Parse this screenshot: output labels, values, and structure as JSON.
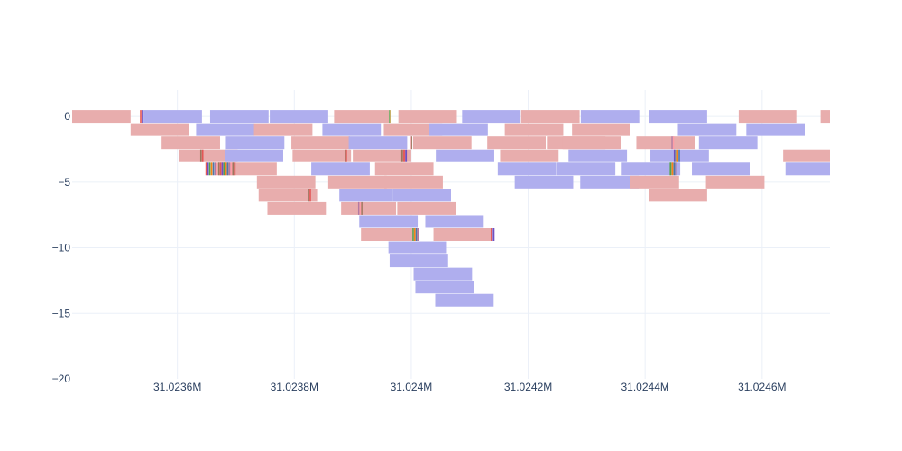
{
  "chart_data": {
    "type": "bar",
    "orientation": "horizontal",
    "grid": true,
    "legend": "none",
    "title": "",
    "xlabel": "",
    "ylabel": "",
    "xlim": [
      31023420,
      31024716
    ],
    "ylim": [
      -20,
      2
    ],
    "x_ticks": [
      {
        "value": 31023600,
        "label": "31.0236M"
      },
      {
        "value": 31023800,
        "label": "31.0238M"
      },
      {
        "value": 31024000,
        "label": "31.024M"
      },
      {
        "value": 31024200,
        "label": "31.0242M"
      },
      {
        "value": 31024400,
        "label": "31.0244M"
      },
      {
        "value": 31024600,
        "label": "31.0246M"
      }
    ],
    "y_ticks": [
      {
        "value": 0,
        "label": "0"
      },
      {
        "value": -5,
        "label": "−5"
      },
      {
        "value": -10,
        "label": "−10"
      },
      {
        "value": -15,
        "label": "−15"
      },
      {
        "value": -20,
        "label": "−20"
      }
    ],
    "colors": {
      "pink": "#e8adad",
      "blue": "#afaeee"
    },
    "segments": [
      {
        "row": 0,
        "start": 31023420,
        "end": 31023520,
        "color": "pink"
      },
      {
        "row": 0,
        "start": 31023542,
        "end": 31023642,
        "color": "blue"
      },
      {
        "row": 0,
        "start": 31023477,
        "end": 31023542,
        "color": "white"
      },
      {
        "row": 0,
        "start": 31023656,
        "end": 31023756,
        "color": "blue"
      },
      {
        "row": 0,
        "start": 31023758,
        "end": 31023858,
        "color": "blue"
      },
      {
        "row": 0,
        "start": 31023868,
        "end": 31023962,
        "color": "pink"
      },
      {
        "row": 0,
        "start": 31023978,
        "end": 31024078,
        "color": "pink"
      },
      {
        "row": 0,
        "start": 31024087,
        "end": 31024187,
        "color": "blue"
      },
      {
        "row": 0,
        "start": 31024188,
        "end": 31024288,
        "color": "pink"
      },
      {
        "row": 0,
        "start": 31024290,
        "end": 31024390,
        "color": "blue"
      },
      {
        "row": 0,
        "start": 31024406,
        "end": 31024506,
        "color": "blue"
      },
      {
        "row": 0,
        "start": 31024560,
        "end": 31024660,
        "color": "pink"
      },
      {
        "row": 0,
        "start": 31024700,
        "end": 31024716,
        "color": "pink"
      },
      {
        "row": -1,
        "start": 31023520,
        "end": 31023620,
        "color": "pink"
      },
      {
        "row": -1,
        "start": 31023632,
        "end": 31023732,
        "color": "blue"
      },
      {
        "row": -1,
        "start": 31023731,
        "end": 31023831,
        "color": "pink"
      },
      {
        "row": -1,
        "start": 31023848,
        "end": 31023948,
        "color": "blue"
      },
      {
        "row": -1,
        "start": 31023953,
        "end": 31024053,
        "color": "pink"
      },
      {
        "row": -1,
        "start": 31024031,
        "end": 31024131,
        "color": "blue"
      },
      {
        "row": -1,
        "start": 31024160,
        "end": 31024260,
        "color": "pink"
      },
      {
        "row": -1,
        "start": 31024275,
        "end": 31024375,
        "color": "pink"
      },
      {
        "row": -1,
        "start": 31024456,
        "end": 31024556,
        "color": "blue"
      },
      {
        "row": -1,
        "start": 31024573,
        "end": 31024673,
        "color": "blue"
      },
      {
        "row": -2,
        "start": 31023573,
        "end": 31023673,
        "color": "pink"
      },
      {
        "row": -2,
        "start": 31023683,
        "end": 31023783,
        "color": "blue"
      },
      {
        "row": -2,
        "start": 31023795,
        "end": 31023895,
        "color": "pink"
      },
      {
        "row": -2,
        "start": 31023893,
        "end": 31023993,
        "color": "blue"
      },
      {
        "row": -2,
        "start": 31024003,
        "end": 31024103,
        "color": "pink"
      },
      {
        "row": -2,
        "start": 31024130,
        "end": 31024230,
        "color": "pink"
      },
      {
        "row": -2,
        "start": 31024232,
        "end": 31024332,
        "color": "pink"
      },
      {
        "row": -2,
        "start": 31024259,
        "end": 31024359,
        "color": "pink"
      },
      {
        "row": -2,
        "start": 31024385,
        "end": 31024485,
        "color": "pink"
      },
      {
        "row": -2,
        "start": 31024492,
        "end": 31024592,
        "color": "blue"
      },
      {
        "row": -3,
        "start": 31023603,
        "end": 31023703,
        "color": "pink"
      },
      {
        "row": -3,
        "start": 31023681,
        "end": 31023781,
        "color": "blue"
      },
      {
        "row": -3,
        "start": 31023797,
        "end": 31023897,
        "color": "pink"
      },
      {
        "row": -3,
        "start": 31023900,
        "end": 31024000,
        "color": "pink"
      },
      {
        "row": -3,
        "start": 31024042,
        "end": 31024142,
        "color": "blue"
      },
      {
        "row": -3,
        "start": 31024152,
        "end": 31024252,
        "color": "pink"
      },
      {
        "row": -3,
        "start": 31024269,
        "end": 31024369,
        "color": "blue"
      },
      {
        "row": -3,
        "start": 31024409,
        "end": 31024509,
        "color": "blue"
      },
      {
        "row": -3,
        "start": 31024636,
        "end": 31024716,
        "color": "pink"
      },
      {
        "row": -4,
        "start": 31023670,
        "end": 31023770,
        "color": "pink"
      },
      {
        "row": -4,
        "start": 31023829,
        "end": 31023929,
        "color": "blue"
      },
      {
        "row": -4,
        "start": 31023938,
        "end": 31024038,
        "color": "pink"
      },
      {
        "row": -4,
        "start": 31024148,
        "end": 31024248,
        "color": "blue"
      },
      {
        "row": -4,
        "start": 31024249,
        "end": 31024349,
        "color": "blue"
      },
      {
        "row": -4,
        "start": 31024360,
        "end": 31024460,
        "color": "blue"
      },
      {
        "row": -4,
        "start": 31024480,
        "end": 31024580,
        "color": "blue"
      },
      {
        "row": -4,
        "start": 31024640,
        "end": 31024716,
        "color": "blue"
      },
      {
        "row": -5,
        "start": 31023736,
        "end": 31023836,
        "color": "pink"
      },
      {
        "row": -5,
        "start": 31023858,
        "end": 31023958,
        "color": "pink"
      },
      {
        "row": -5,
        "start": 31023954,
        "end": 31024054,
        "color": "pink"
      },
      {
        "row": -5,
        "start": 31024177,
        "end": 31024277,
        "color": "blue"
      },
      {
        "row": -5,
        "start": 31024289,
        "end": 31024389,
        "color": "blue"
      },
      {
        "row": -5,
        "start": 31024375,
        "end": 31024458,
        "color": "pink"
      },
      {
        "row": -5,
        "start": 31024504,
        "end": 31024604,
        "color": "pink"
      },
      {
        "row": -6,
        "start": 31023739,
        "end": 31023839,
        "color": "pink"
      },
      {
        "row": -6,
        "start": 31023877,
        "end": 31023968,
        "color": "blue"
      },
      {
        "row": -6,
        "start": 31023968,
        "end": 31024068,
        "color": "blue"
      },
      {
        "row": -6,
        "start": 31024406,
        "end": 31024506,
        "color": "pink"
      },
      {
        "row": -7,
        "start": 31023754,
        "end": 31023854,
        "color": "pink"
      },
      {
        "row": -7,
        "start": 31023880,
        "end": 31023974,
        "color": "pink"
      },
      {
        "row": -7,
        "start": 31023976,
        "end": 31024076,
        "color": "pink"
      },
      {
        "row": -8,
        "start": 31023911,
        "end": 31024011,
        "color": "blue"
      },
      {
        "row": -8,
        "start": 31024024,
        "end": 31024124,
        "color": "blue"
      },
      {
        "row": -9,
        "start": 31023914,
        "end": 31024014,
        "color": "pink"
      },
      {
        "row": -9,
        "start": 31024038,
        "end": 31024138,
        "color": "pink"
      },
      {
        "row": -10,
        "start": 31023961,
        "end": 31024061,
        "color": "blue"
      },
      {
        "row": -11,
        "start": 31023963,
        "end": 31024063,
        "color": "blue"
      },
      {
        "row": -12,
        "start": 31024004,
        "end": 31024104,
        "color": "blue"
      },
      {
        "row": -13,
        "start": 31024007,
        "end": 31024107,
        "color": "blue"
      },
      {
        "row": -14,
        "start": 31024041,
        "end": 31024141,
        "color": "blue"
      }
    ],
    "marker_clusters": [
      {
        "row": 0,
        "start": 31023536,
        "end": 31023542
      },
      {
        "row": 0,
        "start": 31023962,
        "end": 31023966
      },
      {
        "row": -2,
        "start": 31023998,
        "end": 31024002
      },
      {
        "row": -2,
        "start": 31024445,
        "end": 31024450
      },
      {
        "row": -3,
        "start": 31023639,
        "end": 31023645
      },
      {
        "row": -3,
        "start": 31023887,
        "end": 31023890
      },
      {
        "row": -3,
        "start": 31023983,
        "end": 31023993
      },
      {
        "row": -3,
        "start": 31024449,
        "end": 31024460
      },
      {
        "row": -4,
        "start": 31023648,
        "end": 31023700
      },
      {
        "row": -4,
        "start": 31024442,
        "end": 31024455
      },
      {
        "row": -6,
        "start": 31023823,
        "end": 31023829
      },
      {
        "row": -7,
        "start": 31023909,
        "end": 31023917
      },
      {
        "row": -9,
        "start": 31024002,
        "end": 31024013
      },
      {
        "row": -9,
        "start": 31024136,
        "end": 31024143
      }
    ],
    "marker_palette": [
      "#e45756",
      "#6f4fc0",
      "#54a24b",
      "#f58518",
      "#4c78a8",
      "#b279a2",
      "#ff9da6",
      "#9d755d"
    ]
  }
}
